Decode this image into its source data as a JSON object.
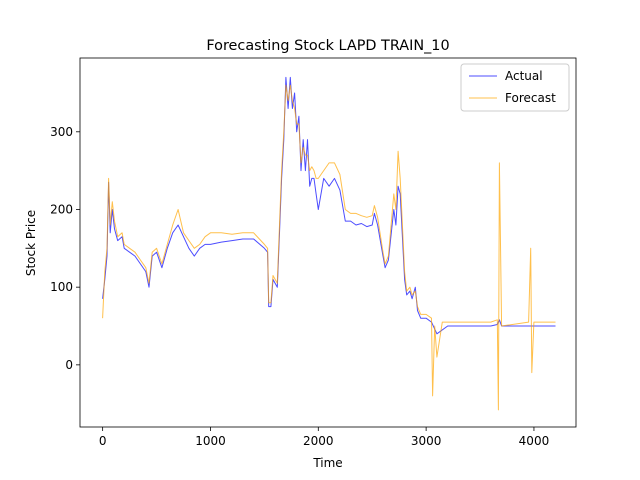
{
  "chart_data": {
    "type": "line",
    "title": "Forecasting Stock LAPD TRAIN_10",
    "xlabel": "Time",
    "ylabel": "Stock Price",
    "xlim": [
      -210,
      4390
    ],
    "ylim": [
      -80,
      395
    ],
    "xticks": [
      0,
      1000,
      2000,
      3000,
      4000
    ],
    "yticks": [
      0,
      100,
      200,
      300
    ],
    "grid": false,
    "legend_position": "top-right",
    "series": [
      {
        "name": "Actual",
        "color": "#0000ff",
        "opacity": 0.7,
        "points": [
          [
            0,
            85
          ],
          [
            20,
            110
          ],
          [
            40,
            140
          ],
          [
            55,
            235
          ],
          [
            70,
            170
          ],
          [
            90,
            200
          ],
          [
            110,
            175
          ],
          [
            140,
            160
          ],
          [
            180,
            165
          ],
          [
            200,
            150
          ],
          [
            250,
            145
          ],
          [
            300,
            140
          ],
          [
            350,
            130
          ],
          [
            400,
            120
          ],
          [
            430,
            100
          ],
          [
            460,
            140
          ],
          [
            500,
            145
          ],
          [
            550,
            125
          ],
          [
            600,
            150
          ],
          [
            650,
            170
          ],
          [
            700,
            180
          ],
          [
            750,
            165
          ],
          [
            800,
            150
          ],
          [
            850,
            140
          ],
          [
            900,
            150
          ],
          [
            950,
            155
          ],
          [
            1000,
            155
          ],
          [
            1100,
            158
          ],
          [
            1200,
            160
          ],
          [
            1300,
            162
          ],
          [
            1400,
            162
          ],
          [
            1500,
            150
          ],
          [
            1530,
            145
          ],
          [
            1540,
            75
          ],
          [
            1560,
            75
          ],
          [
            1580,
            110
          ],
          [
            1620,
            100
          ],
          [
            1640,
            170
          ],
          [
            1660,
            240
          ],
          [
            1680,
            290
          ],
          [
            1700,
            370
          ],
          [
            1720,
            330
          ],
          [
            1740,
            370
          ],
          [
            1760,
            330
          ],
          [
            1780,
            350
          ],
          [
            1800,
            300
          ],
          [
            1820,
            320
          ],
          [
            1840,
            250
          ],
          [
            1860,
            290
          ],
          [
            1880,
            250
          ],
          [
            1900,
            290
          ],
          [
            1920,
            230
          ],
          [
            1940,
            240
          ],
          [
            1960,
            240
          ],
          [
            1980,
            220
          ],
          [
            2000,
            200
          ],
          [
            2050,
            240
          ],
          [
            2100,
            230
          ],
          [
            2150,
            240
          ],
          [
            2200,
            225
          ],
          [
            2250,
            185
          ],
          [
            2300,
            185
          ],
          [
            2350,
            180
          ],
          [
            2400,
            182
          ],
          [
            2450,
            178
          ],
          [
            2500,
            180
          ],
          [
            2520,
            195
          ],
          [
            2550,
            180
          ],
          [
            2600,
            140
          ],
          [
            2620,
            125
          ],
          [
            2650,
            135
          ],
          [
            2700,
            200
          ],
          [
            2720,
            180
          ],
          [
            2740,
            230
          ],
          [
            2760,
            220
          ],
          [
            2780,
            165
          ],
          [
            2800,
            110
          ],
          [
            2820,
            90
          ],
          [
            2850,
            95
          ],
          [
            2870,
            85
          ],
          [
            2900,
            100
          ],
          [
            2920,
            70
          ],
          [
            2950,
            60
          ],
          [
            3000,
            60
          ],
          [
            3050,
            55
          ],
          [
            3100,
            40
          ],
          [
            3200,
            50
          ],
          [
            3400,
            50
          ],
          [
            3600,
            50
          ],
          [
            3660,
            52
          ],
          [
            3680,
            58
          ],
          [
            3700,
            50
          ],
          [
            3900,
            50
          ],
          [
            4000,
            50
          ],
          [
            4200,
            50
          ]
        ]
      },
      {
        "name": "Forecast",
        "color": "#ffa500",
        "opacity": 0.7,
        "points": [
          [
            0,
            60
          ],
          [
            20,
            120
          ],
          [
            40,
            150
          ],
          [
            55,
            240
          ],
          [
            70,
            180
          ],
          [
            90,
            210
          ],
          [
            110,
            185
          ],
          [
            140,
            165
          ],
          [
            180,
            170
          ],
          [
            200,
            155
          ],
          [
            250,
            150
          ],
          [
            300,
            145
          ],
          [
            350,
            135
          ],
          [
            400,
            125
          ],
          [
            430,
            105
          ],
          [
            460,
            145
          ],
          [
            500,
            150
          ],
          [
            550,
            130
          ],
          [
            600,
            155
          ],
          [
            650,
            180
          ],
          [
            700,
            200
          ],
          [
            750,
            170
          ],
          [
            800,
            160
          ],
          [
            850,
            150
          ],
          [
            900,
            155
          ],
          [
            950,
            165
          ],
          [
            1000,
            170
          ],
          [
            1100,
            170
          ],
          [
            1200,
            168
          ],
          [
            1300,
            170
          ],
          [
            1400,
            170
          ],
          [
            1500,
            155
          ],
          [
            1530,
            150
          ],
          [
            1540,
            80
          ],
          [
            1560,
            80
          ],
          [
            1580,
            115
          ],
          [
            1620,
            105
          ],
          [
            1640,
            180
          ],
          [
            1660,
            250
          ],
          [
            1680,
            300
          ],
          [
            1700,
            360
          ],
          [
            1720,
            340
          ],
          [
            1740,
            360
          ],
          [
            1760,
            340
          ],
          [
            1780,
            330
          ],
          [
            1800,
            310
          ],
          [
            1820,
            310
          ],
          [
            1840,
            260
          ],
          [
            1860,
            280
          ],
          [
            1880,
            270
          ],
          [
            1900,
            270
          ],
          [
            1920,
            250
          ],
          [
            1940,
            255
          ],
          [
            1960,
            250
          ],
          [
            1980,
            240
          ],
          [
            2000,
            240
          ],
          [
            2050,
            250
          ],
          [
            2100,
            260
          ],
          [
            2150,
            260
          ],
          [
            2200,
            245
          ],
          [
            2250,
            200
          ],
          [
            2300,
            195
          ],
          [
            2350,
            195
          ],
          [
            2400,
            192
          ],
          [
            2450,
            190
          ],
          [
            2500,
            192
          ],
          [
            2520,
            205
          ],
          [
            2550,
            190
          ],
          [
            2600,
            145
          ],
          [
            2620,
            130
          ],
          [
            2650,
            140
          ],
          [
            2700,
            220
          ],
          [
            2720,
            200
          ],
          [
            2740,
            275
          ],
          [
            2760,
            240
          ],
          [
            2780,
            180
          ],
          [
            2800,
            120
          ],
          [
            2820,
            95
          ],
          [
            2850,
            100
          ],
          [
            2870,
            90
          ],
          [
            2900,
            95
          ],
          [
            2920,
            75
          ],
          [
            2950,
            65
          ],
          [
            3000,
            65
          ],
          [
            3050,
            60
          ],
          [
            3060,
            -40
          ],
          [
            3080,
            50
          ],
          [
            3100,
            10
          ],
          [
            3150,
            55
          ],
          [
            3300,
            55
          ],
          [
            3500,
            55
          ],
          [
            3600,
            55
          ],
          [
            3660,
            58
          ],
          [
            3670,
            -58
          ],
          [
            3680,
            260
          ],
          [
            3700,
            50
          ],
          [
            3950,
            55
          ],
          [
            3970,
            150
          ],
          [
            3980,
            -10
          ],
          [
            4000,
            55
          ],
          [
            4200,
            55
          ]
        ]
      }
    ]
  }
}
